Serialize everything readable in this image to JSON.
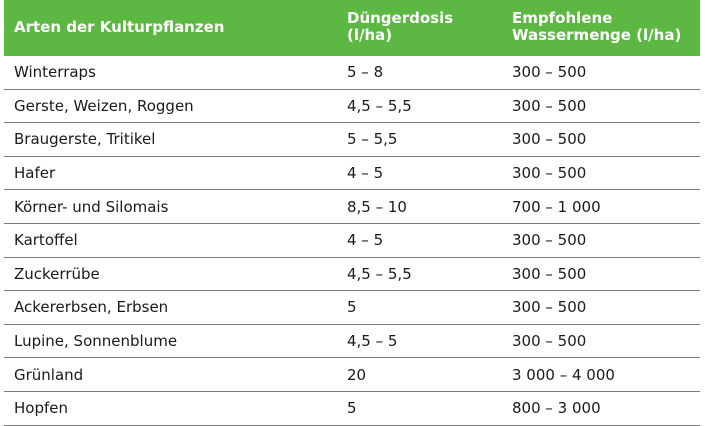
{
  "table": {
    "headers": {
      "col1": "Arten der Kulturpflanzen",
      "col2_line1": "Düngerdosis",
      "col2_line2": "(l/ha)",
      "col3_line1": "Empfohlene",
      "col3_line2": "Wassermenge (l/ha)"
    },
    "rows": [
      {
        "crop": "Winterraps",
        "dose": "5 – 8",
        "water": "300 – 500"
      },
      {
        "crop": "Gerste, Weizen, Roggen",
        "dose": "4,5 – 5,5",
        "water": "300 – 500"
      },
      {
        "crop": "Braugerste, Tritikel",
        "dose": "5 – 5,5",
        "water": "300 – 500"
      },
      {
        "crop": "Hafer",
        "dose": "4 – 5",
        "water": "300 – 500"
      },
      {
        "crop": "Körner- und Silomais",
        "dose": "8,5 – 10",
        "water": "700 – 1 000"
      },
      {
        "crop": "Kartoffel",
        "dose": "4 – 5",
        "water": "300 – 500"
      },
      {
        "crop": "Zuckerrübe",
        "dose": "4,5 – 5,5",
        "water": "300 – 500"
      },
      {
        "crop": "Ackererbsen, Erbsen",
        "dose": "5",
        "water": "300 – 500"
      },
      {
        "crop": "Lupine, Sonnenblume",
        "dose": "4,5 – 5",
        "water": "300 – 500"
      },
      {
        "crop": "Grünland",
        "dose": "20",
        "water": "3 000 – 4 000"
      },
      {
        "crop": "Hopfen",
        "dose": "5",
        "water": "800 – 3 000"
      }
    ],
    "colors": {
      "header_bg": "#5db843",
      "header_text": "#ffffff",
      "rule": "#7a7a7a"
    }
  }
}
